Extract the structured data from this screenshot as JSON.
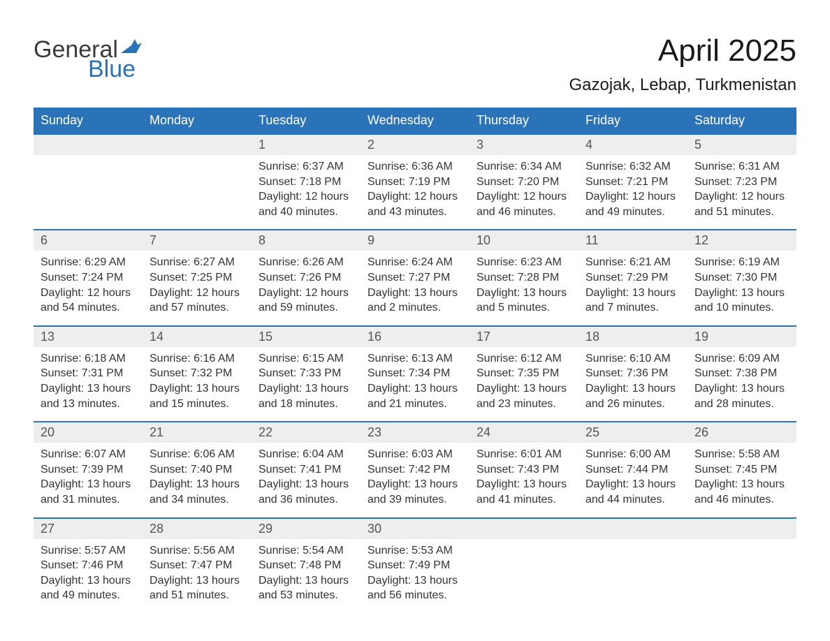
{
  "logo": {
    "word1": "General",
    "word2": "Blue"
  },
  "title": "April 2025",
  "location": "Gazojak, Lebap, Turkmenistan",
  "colors": {
    "brand_blue": "#2a73b8",
    "header_bg": "#2a73b8",
    "header_text": "#ffffff",
    "daynum_bg": "#eeeeee",
    "text": "#333333",
    "page_bg": "#ffffff"
  },
  "day_headers": [
    "Sunday",
    "Monday",
    "Tuesday",
    "Wednesday",
    "Thursday",
    "Friday",
    "Saturday"
  ],
  "weeks": [
    [
      {
        "num": "",
        "lines": []
      },
      {
        "num": "",
        "lines": []
      },
      {
        "num": "1",
        "lines": [
          "Sunrise: 6:37 AM",
          "Sunset: 7:18 PM",
          "Daylight: 12 hours",
          "and 40 minutes."
        ]
      },
      {
        "num": "2",
        "lines": [
          "Sunrise: 6:36 AM",
          "Sunset: 7:19 PM",
          "Daylight: 12 hours",
          "and 43 minutes."
        ]
      },
      {
        "num": "3",
        "lines": [
          "Sunrise: 6:34 AM",
          "Sunset: 7:20 PM",
          "Daylight: 12 hours",
          "and 46 minutes."
        ]
      },
      {
        "num": "4",
        "lines": [
          "Sunrise: 6:32 AM",
          "Sunset: 7:21 PM",
          "Daylight: 12 hours",
          "and 49 minutes."
        ]
      },
      {
        "num": "5",
        "lines": [
          "Sunrise: 6:31 AM",
          "Sunset: 7:23 PM",
          "Daylight: 12 hours",
          "and 51 minutes."
        ]
      }
    ],
    [
      {
        "num": "6",
        "lines": [
          "Sunrise: 6:29 AM",
          "Sunset: 7:24 PM",
          "Daylight: 12 hours",
          "and 54 minutes."
        ]
      },
      {
        "num": "7",
        "lines": [
          "Sunrise: 6:27 AM",
          "Sunset: 7:25 PM",
          "Daylight: 12 hours",
          "and 57 minutes."
        ]
      },
      {
        "num": "8",
        "lines": [
          "Sunrise: 6:26 AM",
          "Sunset: 7:26 PM",
          "Daylight: 12 hours",
          "and 59 minutes."
        ]
      },
      {
        "num": "9",
        "lines": [
          "Sunrise: 6:24 AM",
          "Sunset: 7:27 PM",
          "Daylight: 13 hours",
          "and 2 minutes."
        ]
      },
      {
        "num": "10",
        "lines": [
          "Sunrise: 6:23 AM",
          "Sunset: 7:28 PM",
          "Daylight: 13 hours",
          "and 5 minutes."
        ]
      },
      {
        "num": "11",
        "lines": [
          "Sunrise: 6:21 AM",
          "Sunset: 7:29 PM",
          "Daylight: 13 hours",
          "and 7 minutes."
        ]
      },
      {
        "num": "12",
        "lines": [
          "Sunrise: 6:19 AM",
          "Sunset: 7:30 PM",
          "Daylight: 13 hours",
          "and 10 minutes."
        ]
      }
    ],
    [
      {
        "num": "13",
        "lines": [
          "Sunrise: 6:18 AM",
          "Sunset: 7:31 PM",
          "Daylight: 13 hours",
          "and 13 minutes."
        ]
      },
      {
        "num": "14",
        "lines": [
          "Sunrise: 6:16 AM",
          "Sunset: 7:32 PM",
          "Daylight: 13 hours",
          "and 15 minutes."
        ]
      },
      {
        "num": "15",
        "lines": [
          "Sunrise: 6:15 AM",
          "Sunset: 7:33 PM",
          "Daylight: 13 hours",
          "and 18 minutes."
        ]
      },
      {
        "num": "16",
        "lines": [
          "Sunrise: 6:13 AM",
          "Sunset: 7:34 PM",
          "Daylight: 13 hours",
          "and 21 minutes."
        ]
      },
      {
        "num": "17",
        "lines": [
          "Sunrise: 6:12 AM",
          "Sunset: 7:35 PM",
          "Daylight: 13 hours",
          "and 23 minutes."
        ]
      },
      {
        "num": "18",
        "lines": [
          "Sunrise: 6:10 AM",
          "Sunset: 7:36 PM",
          "Daylight: 13 hours",
          "and 26 minutes."
        ]
      },
      {
        "num": "19",
        "lines": [
          "Sunrise: 6:09 AM",
          "Sunset: 7:38 PM",
          "Daylight: 13 hours",
          "and 28 minutes."
        ]
      }
    ],
    [
      {
        "num": "20",
        "lines": [
          "Sunrise: 6:07 AM",
          "Sunset: 7:39 PM",
          "Daylight: 13 hours",
          "and 31 minutes."
        ]
      },
      {
        "num": "21",
        "lines": [
          "Sunrise: 6:06 AM",
          "Sunset: 7:40 PM",
          "Daylight: 13 hours",
          "and 34 minutes."
        ]
      },
      {
        "num": "22",
        "lines": [
          "Sunrise: 6:04 AM",
          "Sunset: 7:41 PM",
          "Daylight: 13 hours",
          "and 36 minutes."
        ]
      },
      {
        "num": "23",
        "lines": [
          "Sunrise: 6:03 AM",
          "Sunset: 7:42 PM",
          "Daylight: 13 hours",
          "and 39 minutes."
        ]
      },
      {
        "num": "24",
        "lines": [
          "Sunrise: 6:01 AM",
          "Sunset: 7:43 PM",
          "Daylight: 13 hours",
          "and 41 minutes."
        ]
      },
      {
        "num": "25",
        "lines": [
          "Sunrise: 6:00 AM",
          "Sunset: 7:44 PM",
          "Daylight: 13 hours",
          "and 44 minutes."
        ]
      },
      {
        "num": "26",
        "lines": [
          "Sunrise: 5:58 AM",
          "Sunset: 7:45 PM",
          "Daylight: 13 hours",
          "and 46 minutes."
        ]
      }
    ],
    [
      {
        "num": "27",
        "lines": [
          "Sunrise: 5:57 AM",
          "Sunset: 7:46 PM",
          "Daylight: 13 hours",
          "and 49 minutes."
        ]
      },
      {
        "num": "28",
        "lines": [
          "Sunrise: 5:56 AM",
          "Sunset: 7:47 PM",
          "Daylight: 13 hours",
          "and 51 minutes."
        ]
      },
      {
        "num": "29",
        "lines": [
          "Sunrise: 5:54 AM",
          "Sunset: 7:48 PM",
          "Daylight: 13 hours",
          "and 53 minutes."
        ]
      },
      {
        "num": "30",
        "lines": [
          "Sunrise: 5:53 AM",
          "Sunset: 7:49 PM",
          "Daylight: 13 hours",
          "and 56 minutes."
        ]
      },
      {
        "num": "",
        "lines": []
      },
      {
        "num": "",
        "lines": []
      },
      {
        "num": "",
        "lines": []
      }
    ]
  ]
}
